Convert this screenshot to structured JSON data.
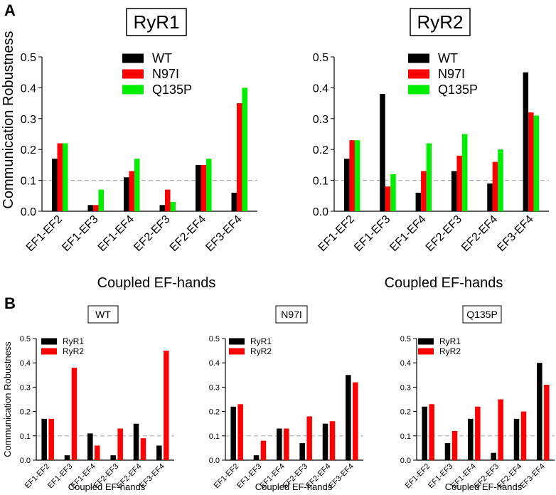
{
  "panel_labels": {
    "a": "A",
    "b": "B"
  },
  "colors": {
    "WT": "#000000",
    "N97I": "#ff0000",
    "Q135P": "#00ee00",
    "RyR1": "#000000",
    "RyR2": "#ff0000",
    "ref_line": "#b0b0b0"
  },
  "chart_data": [
    {
      "id": "A1",
      "type": "bar",
      "title": "RyR1",
      "xlabel": "Coupled EF-hands",
      "ylabel": "Communication Robustness",
      "ylim": [
        0,
        0.5
      ],
      "yticks": [
        "0.0",
        "0.1",
        "0.2",
        "0.3",
        "0.4",
        "0.5"
      ],
      "reference_line": 0.1,
      "legend_position": "top-center",
      "categories": [
        "EF1-EF2",
        "EF1-EF3",
        "EF1-EF4",
        "EF2-EF3",
        "EF2-EF4",
        "EF3-EF4"
      ],
      "series": [
        {
          "name": "WT",
          "color": "#000000",
          "values": [
            0.17,
            0.02,
            0.11,
            0.02,
            0.15,
            0.06
          ]
        },
        {
          "name": "N97I",
          "color": "#ff0000",
          "values": [
            0.22,
            0.02,
            0.13,
            0.07,
            0.15,
            0.35
          ]
        },
        {
          "name": "Q135P",
          "color": "#00ee00",
          "values": [
            0.22,
            0.07,
            0.17,
            0.03,
            0.17,
            0.4
          ]
        }
      ]
    },
    {
      "id": "A2",
      "type": "bar",
      "title": "RyR2",
      "xlabel": "Coupled EF-hands",
      "ylabel": "",
      "ylim": [
        0,
        0.5
      ],
      "yticks": [
        "0.0",
        "0.1",
        "0.2",
        "0.3",
        "0.4",
        "0.5"
      ],
      "reference_line": 0.1,
      "legend_position": "top-center",
      "categories": [
        "EF1-EF2",
        "EF1-EF3",
        "EF1-EF4",
        "EF2-EF3",
        "EF2-EF4",
        "EF3-EF4"
      ],
      "series": [
        {
          "name": "WT",
          "color": "#000000",
          "values": [
            0.17,
            0.38,
            0.06,
            0.13,
            0.09,
            0.45
          ]
        },
        {
          "name": "N97I",
          "color": "#ff0000",
          "values": [
            0.23,
            0.08,
            0.13,
            0.18,
            0.16,
            0.32
          ]
        },
        {
          "name": "Q135P",
          "color": "#00ee00",
          "values": [
            0.23,
            0.12,
            0.22,
            0.25,
            0.2,
            0.31
          ]
        }
      ]
    },
    {
      "id": "B1",
      "type": "bar",
      "title": "WT",
      "xlabel": "Coupled EF-hands",
      "ylabel": "Communication Robustness",
      "ylim": [
        0,
        0.5
      ],
      "yticks": [
        "0.0",
        "0.1",
        "0.2",
        "0.3",
        "0.4",
        "0.5"
      ],
      "reference_line": 0.1,
      "legend_position": "top-left",
      "categories": [
        "EF1-EF2",
        "EF1-EF3",
        "EF1-EF4",
        "EF2-EF3",
        "EF2-EF4",
        "EF3-EF4"
      ],
      "series": [
        {
          "name": "RyR1",
          "color": "#000000",
          "values": [
            0.17,
            0.02,
            0.11,
            0.02,
            0.15,
            0.06
          ]
        },
        {
          "name": "RyR2",
          "color": "#ff0000",
          "values": [
            0.17,
            0.38,
            0.06,
            0.13,
            0.09,
            0.45
          ]
        }
      ]
    },
    {
      "id": "B2",
      "type": "bar",
      "title": "N97I",
      "xlabel": "Coupled EF-hands",
      "ylabel": "",
      "ylim": [
        0,
        0.5
      ],
      "yticks": [
        "0.0",
        "0.1",
        "0.2",
        "0.3",
        "0.4",
        "0.5"
      ],
      "reference_line": 0.1,
      "legend_position": "top-left",
      "categories": [
        "EF1-EF2",
        "EF1-EF3",
        "EF1-EF4",
        "EF2-EF3",
        "EF2-EF4",
        "EF3-EF4"
      ],
      "series": [
        {
          "name": "RyR1",
          "color": "#000000",
          "values": [
            0.22,
            0.02,
            0.13,
            0.07,
            0.15,
            0.35
          ]
        },
        {
          "name": "RyR2",
          "color": "#ff0000",
          "values": [
            0.23,
            0.08,
            0.13,
            0.18,
            0.16,
            0.32
          ]
        }
      ]
    },
    {
      "id": "B3",
      "type": "bar",
      "title": "Q135P",
      "xlabel": "Coupled EF-hands",
      "ylabel": "",
      "ylim": [
        0,
        0.5
      ],
      "yticks": [
        "0.0",
        "0.1",
        "0.2",
        "0.3",
        "0.4",
        "0.5"
      ],
      "reference_line": 0.1,
      "legend_position": "top-left",
      "categories": [
        "EF1-EF2",
        "EF1-EF3",
        "EF1-EF4",
        "EF2-EF3",
        "EF2-EF4",
        "EF3-EF4"
      ],
      "series": [
        {
          "name": "RyR1",
          "color": "#000000",
          "values": [
            0.22,
            0.07,
            0.17,
            0.03,
            0.17,
            0.4
          ]
        },
        {
          "name": "RyR2",
          "color": "#ff0000",
          "values": [
            0.23,
            0.12,
            0.22,
            0.25,
            0.2,
            0.31
          ]
        }
      ]
    }
  ]
}
